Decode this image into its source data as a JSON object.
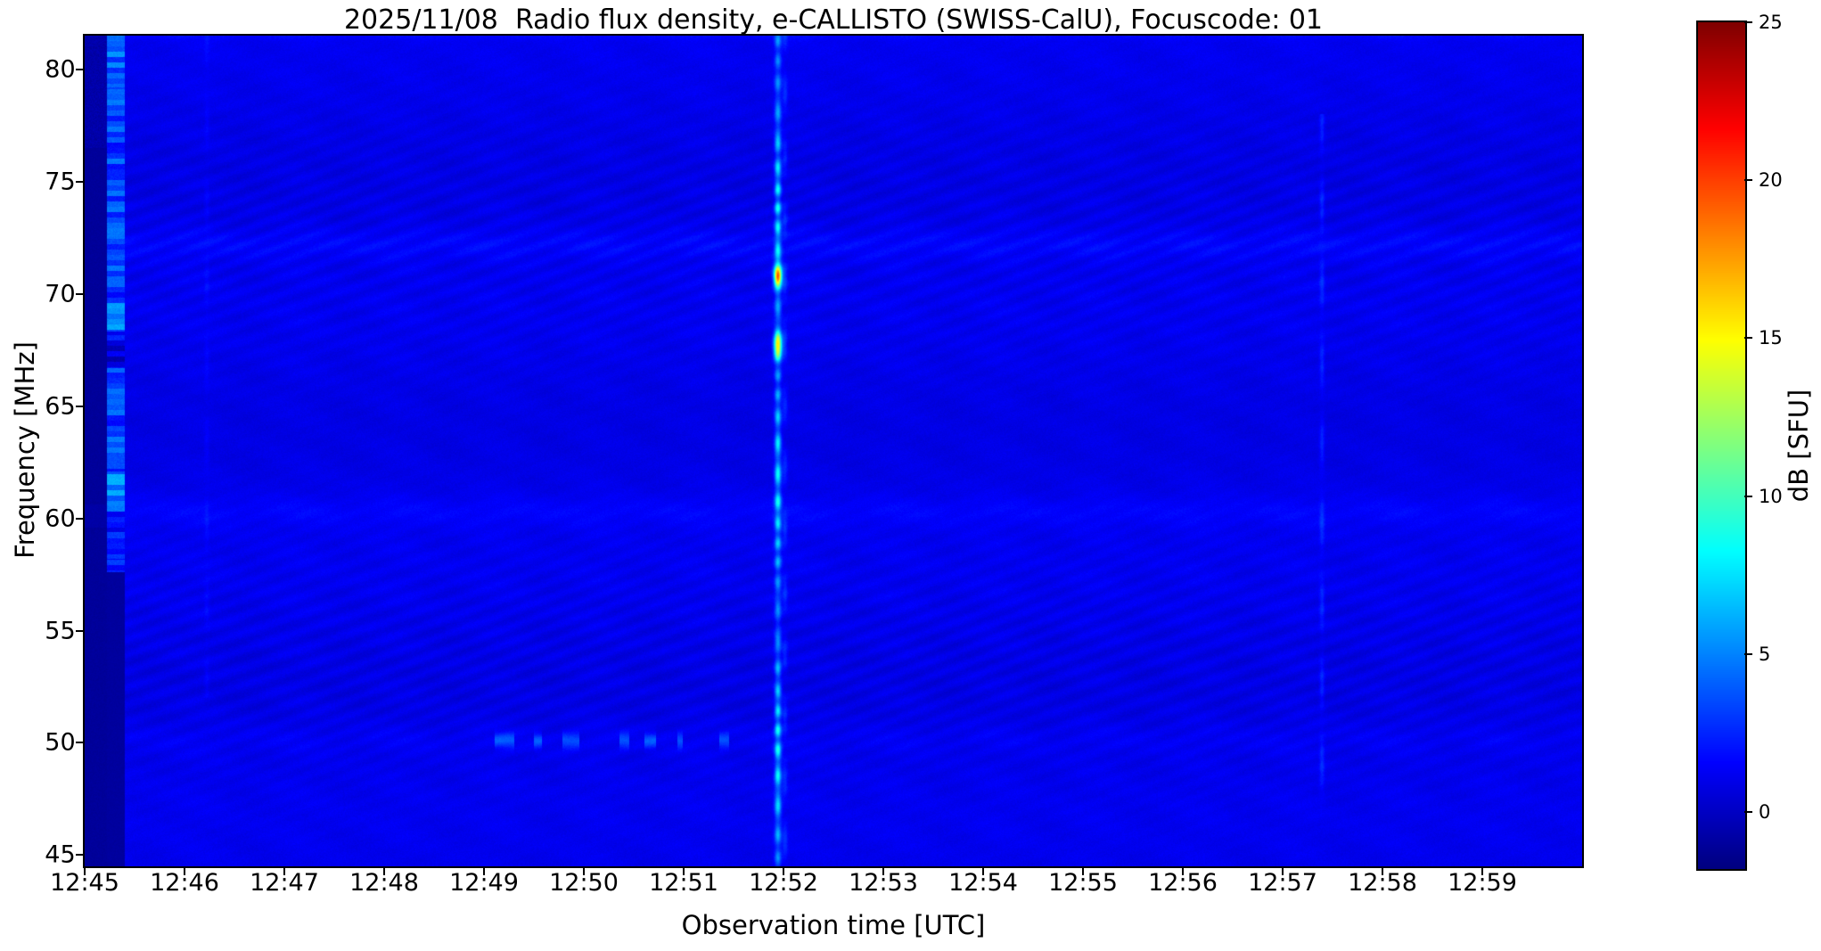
{
  "figure": {
    "background_color": "#ffffff"
  },
  "chart_data": {
    "type": "heatmap",
    "subtype": "radio-spectrogram",
    "title": "2025/11/08  Radio flux density, e-CALLISTO (SWISS-CalU), Focuscode: 01",
    "xlabel": "Observation time [UTC]",
    "ylabel": "Frequency [MHz]",
    "colorbar_label": "dB [SFU]",
    "colormap": "jet",
    "legend_position": "right-colorbar",
    "grid": false,
    "x_tick_labels": [
      "12:45",
      "12:46",
      "12:47",
      "12:48",
      "12:49",
      "12:50",
      "12:51",
      "12:52",
      "12:53",
      "12:54",
      "12:55",
      "12:56",
      "12:57",
      "12:58",
      "12:59"
    ],
    "x_range_minutes": [
      0,
      15
    ],
    "y_tick_values": [
      45,
      50,
      55,
      60,
      65,
      70,
      75,
      80
    ],
    "y_range_mhz": [
      44.5,
      81.5
    ],
    "colorbar_tick_values": [
      0,
      5,
      10,
      15,
      20,
      25
    ],
    "color_range_db": [
      -1.8,
      25
    ],
    "background_level_db": 1.0,
    "features": [
      {
        "name": "calibration-dark-column",
        "time_min": [
          0,
          0.22
        ],
        "freq_mhz": [
          44.5,
          81.5
        ],
        "level_db": -1.1
      },
      {
        "name": "calibration-bright-stripes",
        "time_min": [
          0.22,
          0.4
        ],
        "freq_mhz": [
          57.6,
          81.5
        ],
        "level_db_range": [
          1.6,
          6.5
        ]
      },
      {
        "name": "radio-burst-vertical-line",
        "time_min": 6.94,
        "freq_mhz": [
          44.5,
          81.5
        ],
        "level_db": 7,
        "peaks": [
          {
            "freq_mhz": 70.8,
            "level_db": 15
          },
          {
            "freq_mhz": 67.7,
            "level_db": 15
          }
        ]
      },
      {
        "name": "faint-vertical-line",
        "time_min": 12.39,
        "freq_mhz": [
          47,
          78
        ],
        "level_db": 2.6
      },
      {
        "name": "faint-vertical-line",
        "time_min": 1.22,
        "freq_mhz": [
          52,
          81.5
        ],
        "level_db": 1.6
      },
      {
        "name": "horizontal-band",
        "freq_mhz": 72.2,
        "level_db": 1.6
      },
      {
        "name": "horizontal-band",
        "freq_mhz": 60.3,
        "level_db": 1.5
      },
      {
        "name": "horizontal-band",
        "freq_mhz": 50.15,
        "level_db": 1.3
      },
      {
        "name": "sporadic-dashes",
        "freq_mhz": 50.1,
        "level_db": 3.6,
        "time_segments_min": [
          [
            4.1,
            4.3
          ],
          [
            4.5,
            4.58
          ],
          [
            4.78,
            4.95
          ],
          [
            5.35,
            5.45
          ],
          [
            5.6,
            5.72
          ],
          [
            5.93,
            5.99
          ],
          [
            6.35,
            6.45
          ]
        ]
      }
    ]
  }
}
